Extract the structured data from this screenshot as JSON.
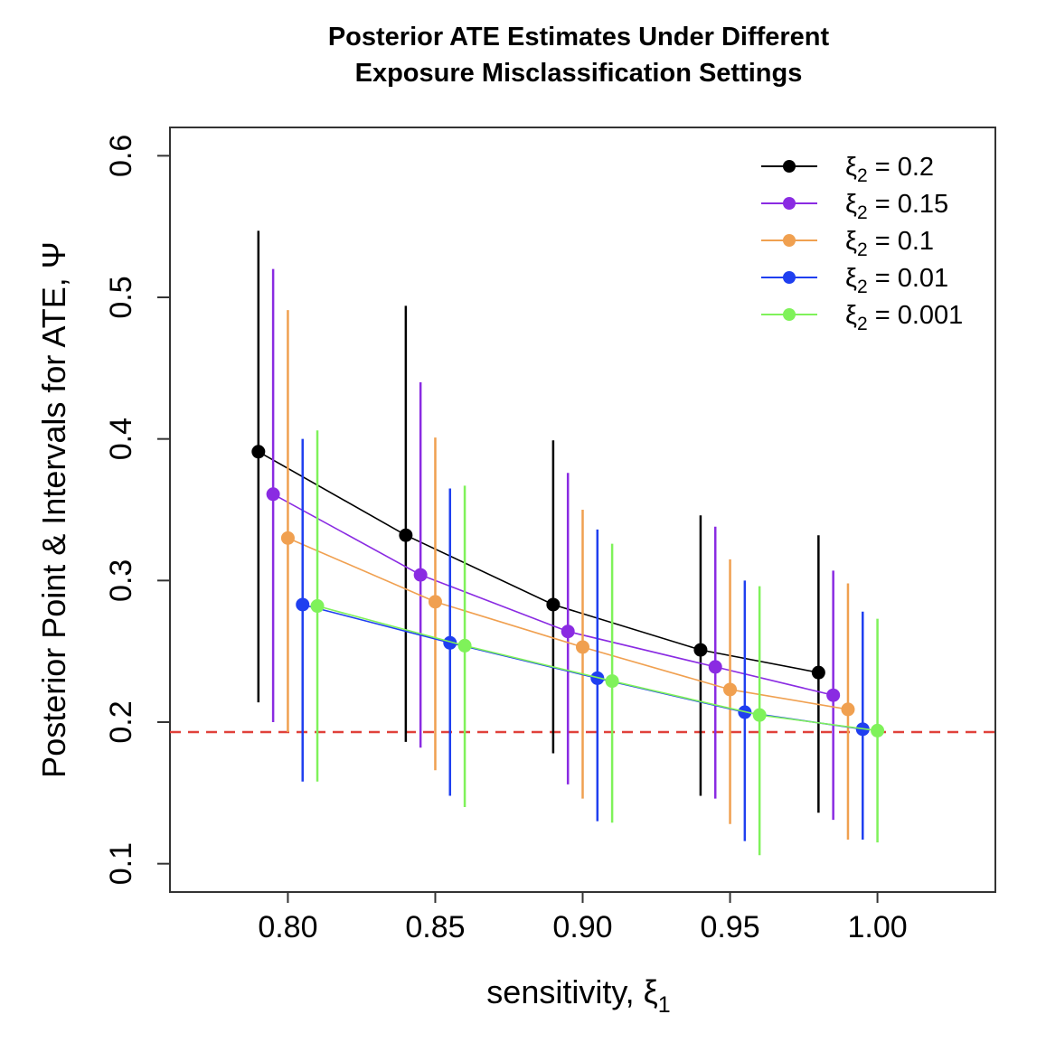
{
  "chart_data": {
    "type": "line",
    "title_lines": [
      "Posterior ATE Estimates Under Different",
      "Exposure Misclassification Settings"
    ],
    "xlabel": "sensitivity, ξ",
    "xlabel_subscript": "1",
    "ylabel": "Posterior Point & Intervals for ATE, Ψ",
    "xlim": [
      0.76,
      1.04
    ],
    "ylim": [
      0.08,
      0.62
    ],
    "x_ticks": [
      0.8,
      0.85,
      0.9,
      0.95,
      1.0
    ],
    "x_tick_labels": [
      "0.80",
      "0.85",
      "0.90",
      "0.95",
      "1.00"
    ],
    "y_ticks": [
      0.1,
      0.2,
      0.3,
      0.4,
      0.5,
      0.6
    ],
    "y_tick_labels": [
      "0.1",
      "0.2",
      "0.3",
      "0.4",
      "0.5",
      "0.6"
    ],
    "reference_line": {
      "y": 0.193,
      "color": "#e0413a",
      "style": "dashed"
    },
    "legend_position": "top-right",
    "series": [
      {
        "name": "ξ2 = 0.2",
        "legend_prefix": "ξ",
        "legend_sub": "2",
        "legend_value": " = 0.2",
        "color": "#000000",
        "x": [
          0.79,
          0.84,
          0.89,
          0.94,
          0.98
        ],
        "y": [
          0.391,
          0.332,
          0.283,
          0.251,
          0.235
        ],
        "lower": [
          0.214,
          0.186,
          0.178,
          0.148,
          0.136
        ],
        "upper": [
          0.547,
          0.494,
          0.399,
          0.346,
          0.332
        ]
      },
      {
        "name": "ξ2 = 0.15",
        "legend_prefix": "ξ",
        "legend_sub": "2",
        "legend_value": " = 0.15",
        "color": "#8a2be2",
        "x": [
          0.795,
          0.845,
          0.895,
          0.945,
          0.985
        ],
        "y": [
          0.361,
          0.304,
          0.264,
          0.239,
          0.219
        ],
        "lower": [
          0.2,
          0.182,
          0.156,
          0.146,
          0.131
        ],
        "upper": [
          0.52,
          0.44,
          0.376,
          0.338,
          0.307
        ]
      },
      {
        "name": "ξ2 = 0.1",
        "legend_prefix": "ξ",
        "legend_sub": "2",
        "legend_value": " = 0.1",
        "color": "#f0a050",
        "x": [
          0.8,
          0.85,
          0.9,
          0.95,
          0.99
        ],
        "y": [
          0.33,
          0.285,
          0.253,
          0.223,
          0.209
        ],
        "lower": [
          0.193,
          0.166,
          0.146,
          0.128,
          0.117
        ],
        "upper": [
          0.491,
          0.401,
          0.35,
          0.315,
          0.298
        ]
      },
      {
        "name": "ξ2 = 0.01",
        "legend_prefix": "ξ",
        "legend_sub": "2",
        "legend_value": " = 0.01",
        "color": "#1f3ff0",
        "x": [
          0.805,
          0.855,
          0.905,
          0.955,
          0.995
        ],
        "y": [
          0.283,
          0.256,
          0.231,
          0.207,
          0.195
        ],
        "lower": [
          0.158,
          0.148,
          0.13,
          0.116,
          0.117
        ],
        "upper": [
          0.4,
          0.365,
          0.336,
          0.3,
          0.278
        ]
      },
      {
        "name": "ξ2 = 0.001",
        "legend_prefix": "ξ",
        "legend_sub": "2",
        "legend_value": " = 0.001",
        "color": "#7ff25a",
        "x": [
          0.81,
          0.86,
          0.91,
          0.96,
          1.0
        ],
        "y": [
          0.282,
          0.254,
          0.229,
          0.205,
          0.194
        ],
        "lower": [
          0.158,
          0.14,
          0.129,
          0.106,
          0.115
        ],
        "upper": [
          0.406,
          0.367,
          0.326,
          0.296,
          0.273
        ]
      }
    ]
  }
}
